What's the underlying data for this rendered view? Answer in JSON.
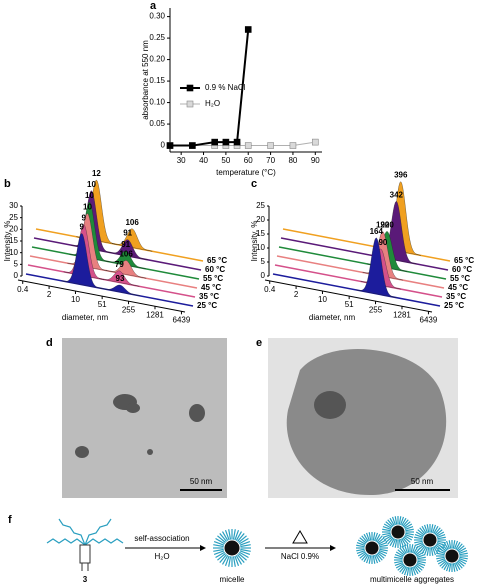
{
  "chart_data": [
    {
      "type": "line",
      "panel": "a",
      "x_label": "temperature (°C)",
      "y_label": "absorbance at 550 nm",
      "xlim": [
        25,
        93
      ],
      "xticks": [
        30,
        40,
        50,
        60,
        70,
        80,
        90
      ],
      "ylim": [
        -0.015,
        0.32
      ],
      "yticks": [
        0,
        0.05,
        {
          "value": 0.1,
          "label": "0.10"
        },
        0.15,
        {
          "value": 0.2,
          "label": "0.20"
        },
        0.25,
        {
          "value": 0.3,
          "label": "0.30"
        }
      ],
      "series": [
        {
          "name": "0.9 % NaCl",
          "color": "#000000",
          "marker_fill": "#000000",
          "x": [
            25,
            35,
            45,
            50,
            55,
            60
          ],
          "values": [
            0,
            0,
            0.008,
            0.008,
            0.008,
            0.27
          ]
        },
        {
          "name": "H₂O",
          "color": "#b0b0b0",
          "marker_fill": "#d9d9d9",
          "x": [
            25,
            35,
            45,
            50,
            55,
            60,
            70,
            80,
            90
          ],
          "values": [
            0,
            0,
            0,
            0,
            0,
            0,
            0,
            0,
            0.008
          ]
        }
      ]
    },
    {
      "type": "waterfall",
      "panel": "b",
      "x_label": "diameter, nm",
      "y_label": "Intensity, %",
      "log_x": true,
      "xlim": [
        0.3,
        8000
      ],
      "xticks": [
        0.4,
        2,
        10,
        51,
        255,
        1281,
        6439
      ],
      "ylim": [
        0,
        30
      ],
      "yticks": [
        0,
        5,
        10,
        15,
        20,
        25,
        30
      ],
      "series": [
        {
          "name": "25 °C",
          "color": "#1c1c9c",
          "x": [
            9,
            93
          ],
          "values": [
            22,
            3
          ]
        },
        {
          "name": "35 °C",
          "color": "#d4508a",
          "x": [
            9,
            79
          ],
          "values": [
            22,
            5
          ]
        },
        {
          "name": "45 °C",
          "color": "#e88080",
          "x": [
            10,
            106
          ],
          "values": [
            23,
            6
          ]
        },
        {
          "name": "55 °C",
          "color": "#1f8a3a",
          "x": [
            10,
            91
          ],
          "values": [
            24,
            6
          ]
        },
        {
          "name": "60 °C",
          "color": "#5a1a78",
          "x": [
            10,
            91
          ],
          "values": [
            25,
            7
          ]
        },
        {
          "name": "65 °C",
          "color": "#f0a020",
          "x": [
            12,
            106
          ],
          "values": [
            26,
            8
          ]
        }
      ]
    },
    {
      "type": "waterfall",
      "panel": "c",
      "x_label": "diameter, nm",
      "y_label": "Intensity, %",
      "log_x": true,
      "xlim": [
        0.3,
        8000
      ],
      "xticks": [
        0.4,
        2,
        10,
        51,
        255,
        1281,
        6439
      ],
      "ylim": [
        0,
        25
      ],
      "yticks": [
        0,
        5,
        10,
        15,
        20,
        25
      ],
      "series": [
        {
          "name": "25 °C",
          "color": "#1c1c9c",
          "x": [
            164
          ],
          "values": [
            20
          ]
        },
        {
          "name": "35 °C",
          "color": "#d4508a",
          "x": [
            190
          ],
          "values": [
            13
          ]
        },
        {
          "name": "45 °C",
          "color": "#e88080",
          "x": [
            190
          ],
          "values": [
            16
          ]
        },
        {
          "name": "55 °C",
          "color": "#1f8a3a",
          "x": [
            220
          ],
          "values": [
            13
          ]
        },
        {
          "name": "60 °C",
          "color": "#5a1a78",
          "x": [
            342
          ],
          "values": [
            21
          ]
        },
        {
          "name": "65 °C",
          "color": "#f0a020",
          "x": [
            396
          ],
          "values": [
            25
          ]
        }
      ]
    }
  ],
  "images": [
    {
      "panel": "d",
      "scale_bar": "50 nm"
    },
    {
      "panel": "e",
      "scale_bar": "50 nm"
    }
  ],
  "scheme": {
    "panel": "f",
    "compound": "3",
    "step1_top": "self-association",
    "step1_bottom": "H₂O",
    "micelle": "micelle",
    "step2_bottom": "NaCl 0.9%",
    "product": "multimicelle aggregates"
  }
}
